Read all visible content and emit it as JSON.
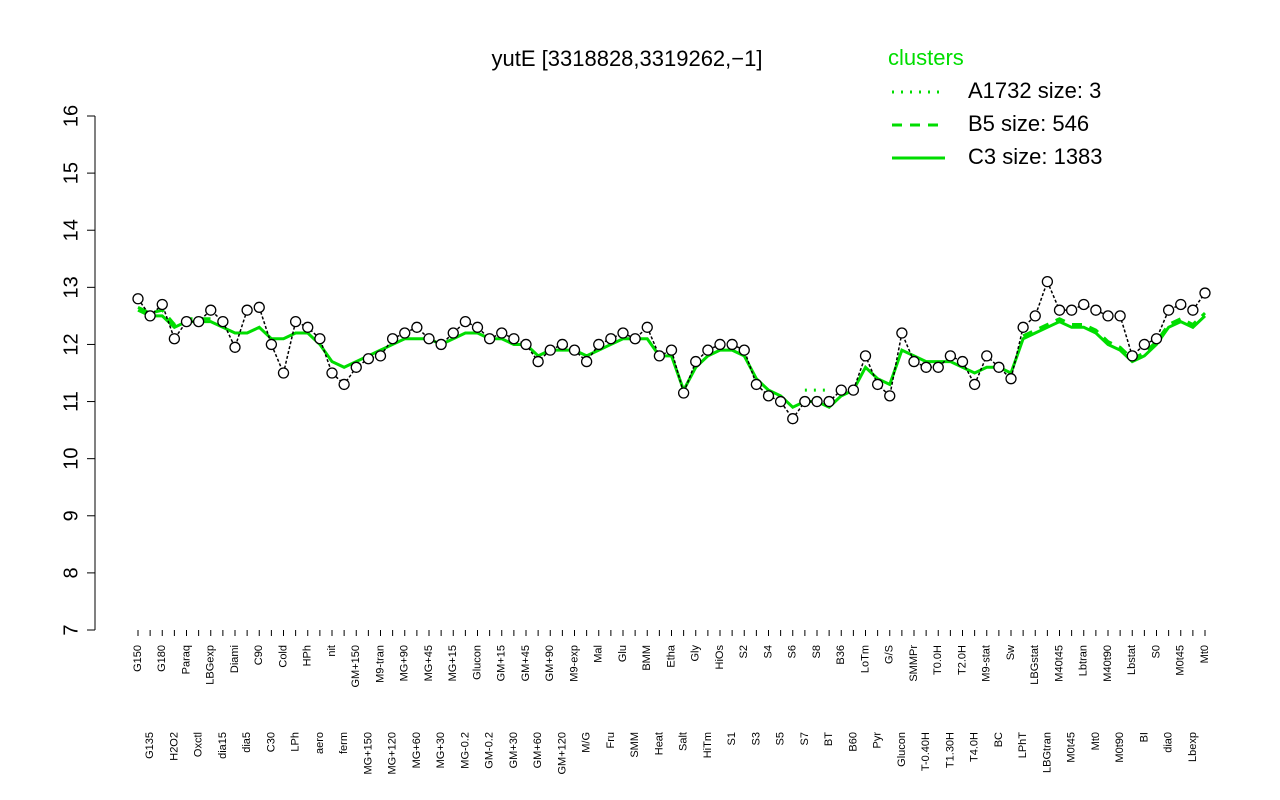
{
  "chart_data": {
    "type": "line",
    "title": "yutE [3318828,3319262,−1]",
    "legend_title": "clusters",
    "legend_position": "top-right",
    "ylim": [
      7,
      16
    ],
    "yticks": [
      7,
      8,
      9,
      10,
      11,
      12,
      13,
      14,
      15,
      16
    ],
    "point_color": "#000000",
    "categories": [
      "G150",
      "G135",
      "G180",
      "H2O2",
      "Paraq",
      "Oxctl",
      "LBGexp",
      "dia15",
      "Diami",
      "dia5",
      "C90",
      "C30",
      "Cold",
      "LPh",
      "HPh",
      "aero",
      "nit",
      "ferm",
      "GM+150",
      "MG+150",
      "M9-tran",
      "MG+120",
      "MG+90",
      "MG+60",
      "MG+45",
      "MG+30",
      "MG+15",
      "MG-0.2",
      "Glucon",
      "GM-0.2",
      "GM+15",
      "GM+30",
      "GM+45",
      "GM+60",
      "GM+90",
      "GM+120",
      "M9-exp",
      "M/G",
      "Mal",
      "Fru",
      "Glu",
      "SMM",
      "BMM",
      "Heat",
      "Etha",
      "Salt",
      "Gly",
      "HiTm",
      "HiOs",
      "S1",
      "S2",
      "S3",
      "S4",
      "S5",
      "S6",
      "S7",
      "S8",
      "BT",
      "B36",
      "B60",
      "LoTm",
      "Pyr",
      "G/S",
      "Glucon",
      "SMMPr",
      "T-0.40H",
      "T0.0H",
      "T1.30H",
      "T2.0H",
      "T4.0H",
      "M9-stat",
      "BC",
      "Sw",
      "LPhT",
      "LBGstat",
      "LBGtran",
      "M40t45",
      "M0t45",
      "Lbtran",
      "Mt0",
      "M40t90",
      "M0t90",
      "Lbstat",
      "BI",
      "S0",
      "dia0",
      "M0t45",
      "Lbexp",
      "Mt0"
    ],
    "values": [
      12.8,
      12.5,
      12.7,
      12.1,
      12.4,
      12.4,
      12.6,
      12.4,
      11.95,
      12.6,
      12.65,
      12.0,
      11.5,
      12.4,
      12.3,
      12.1,
      11.5,
      11.3,
      11.6,
      11.75,
      11.8,
      12.1,
      12.2,
      12.3,
      12.1,
      12.0,
      12.2,
      12.4,
      12.3,
      12.1,
      12.2,
      12.1,
      12.0,
      11.7,
      11.9,
      12.0,
      11.9,
      11.7,
      12.0,
      12.1,
      12.2,
      12.1,
      12.3,
      11.8,
      11.9,
      11.15,
      11.7,
      11.9,
      12.0,
      12.0,
      11.9,
      11.3,
      11.1,
      11.0,
      10.7,
      11.0,
      11.0,
      11.0,
      11.2,
      11.2,
      11.8,
      11.3,
      11.1,
      12.2,
      11.7,
      11.6,
      11.6,
      11.8,
      11.7,
      11.3,
      11.8,
      11.6,
      11.4,
      12.3,
      12.5,
      13.1,
      12.6,
      12.6,
      12.7,
      12.6,
      12.5,
      12.5,
      11.8,
      12.0,
      12.1,
      12.6,
      12.7,
      12.6,
      12.9
    ],
    "series": [
      {
        "name": "A1732 size: 3",
        "color": "#00dd00",
        "dash": "dotted",
        "values": [
          null,
          null,
          null,
          null,
          null,
          null,
          null,
          null,
          null,
          null,
          null,
          null,
          null,
          null,
          null,
          null,
          null,
          null,
          null,
          null,
          null,
          null,
          null,
          null,
          null,
          null,
          null,
          null,
          null,
          null,
          null,
          null,
          null,
          null,
          null,
          null,
          null,
          null,
          null,
          null,
          null,
          null,
          null,
          null,
          null,
          null,
          null,
          null,
          null,
          null,
          null,
          null,
          null,
          null,
          null,
          11.2,
          11.2,
          11.2,
          null,
          null,
          null,
          null,
          null,
          null,
          null,
          null,
          null,
          null,
          null,
          null,
          null,
          null,
          null,
          null,
          null,
          null,
          null,
          null,
          null,
          null,
          null,
          null,
          null,
          null,
          null,
          null,
          null,
          null,
          null
        ]
      },
      {
        "name": "B5 size: 546",
        "color": "#00dd00",
        "dash": "dashed",
        "values": [
          12.65,
          12.55,
          12.6,
          12.35,
          12.45,
          12.45,
          12.45,
          12.35,
          null,
          null,
          null,
          null,
          null,
          null,
          null,
          null,
          null,
          null,
          null,
          null,
          null,
          null,
          null,
          null,
          null,
          null,
          null,
          null,
          null,
          null,
          null,
          null,
          null,
          null,
          null,
          null,
          null,
          null,
          null,
          null,
          null,
          null,
          null,
          null,
          null,
          null,
          null,
          null,
          null,
          null,
          null,
          null,
          null,
          null,
          null,
          null,
          null,
          null,
          null,
          null,
          null,
          null,
          null,
          null,
          null,
          null,
          null,
          null,
          null,
          null,
          null,
          null,
          null,
          12.15,
          12.25,
          12.35,
          12.45,
          12.35,
          12.35,
          12.25,
          12.05,
          11.95,
          11.75,
          11.85,
          12.05,
          12.35,
          12.45,
          12.35,
          12.55
        ]
      },
      {
        "name": "C3 size: 1383",
        "color": "#00dd00",
        "dash": "solid",
        "values": [
          12.6,
          12.5,
          12.5,
          12.3,
          12.4,
          12.4,
          12.4,
          12.3,
          12.2,
          12.2,
          12.3,
          12.1,
          12.1,
          12.2,
          12.2,
          12.0,
          11.7,
          11.6,
          11.7,
          11.8,
          11.9,
          12.0,
          12.1,
          12.1,
          12.1,
          12.0,
          12.1,
          12.2,
          12.2,
          12.1,
          12.1,
          12.0,
          12.0,
          11.8,
          11.9,
          11.9,
          11.9,
          11.8,
          11.9,
          12.0,
          12.1,
          12.1,
          12.1,
          11.8,
          11.8,
          11.2,
          11.6,
          11.8,
          11.9,
          11.9,
          11.8,
          11.4,
          11.2,
          11.1,
          10.9,
          11.0,
          11.0,
          10.9,
          11.1,
          11.2,
          11.6,
          11.4,
          11.3,
          11.9,
          11.8,
          11.7,
          11.7,
          11.7,
          11.6,
          11.5,
          11.6,
          11.6,
          11.5,
          12.1,
          12.2,
          12.3,
          12.4,
          12.3,
          12.3,
          12.2,
          12.0,
          11.9,
          11.7,
          11.8,
          12.0,
          12.3,
          12.4,
          12.3,
          12.5
        ]
      }
    ]
  }
}
